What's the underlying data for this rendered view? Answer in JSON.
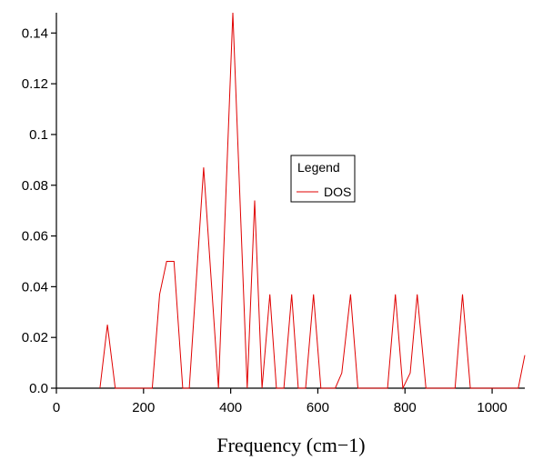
{
  "chart_data": {
    "type": "line",
    "title": "",
    "xlabel": "Frequency (cm−1)",
    "ylabel": "",
    "xlim": [
      0,
      1075
    ],
    "ylim": [
      0,
      0.148
    ],
    "x_ticks": [
      0,
      200,
      400,
      600,
      800,
      1000
    ],
    "y_ticks": [
      0.0,
      0.02,
      0.04,
      0.06,
      0.08,
      0.1,
      0.12,
      0.14
    ],
    "x_tick_labels": [
      "0",
      "200",
      "400",
      "600",
      "800",
      "1000"
    ],
    "y_tick_labels": [
      "0.0",
      "0.02",
      "0.04",
      "0.06",
      "0.08",
      "0.1",
      "0.12",
      "0.14"
    ],
    "grid": false,
    "legend": {
      "title": "Legend",
      "placement": "center-right"
    },
    "colors": {
      "series": "#e00000",
      "axis": "#000000"
    },
    "series": [
      {
        "name": "DOS",
        "x": [
          100,
          117,
          135,
          220,
          237,
          253,
          270,
          290,
          305,
          338,
          372,
          405,
          438,
          455,
          472,
          490,
          505,
          522,
          540,
          555,
          572,
          590,
          607,
          640,
          655,
          675,
          692,
          760,
          778,
          795,
          812,
          828,
          848,
          915,
          932,
          950,
          1060,
          1075
        ],
        "y": [
          0,
          0.025,
          0,
          0,
          0.037,
          0.05,
          0.05,
          0,
          0,
          0.087,
          0,
          0.148,
          0,
          0.074,
          0,
          0.037,
          0,
          0,
          0.037,
          0,
          0,
          0.037,
          0,
          0,
          0.006,
          0.037,
          0,
          0,
          0.037,
          0,
          0.006,
          0.037,
          0,
          0,
          0.037,
          0,
          0,
          0.013
        ]
      }
    ]
  }
}
